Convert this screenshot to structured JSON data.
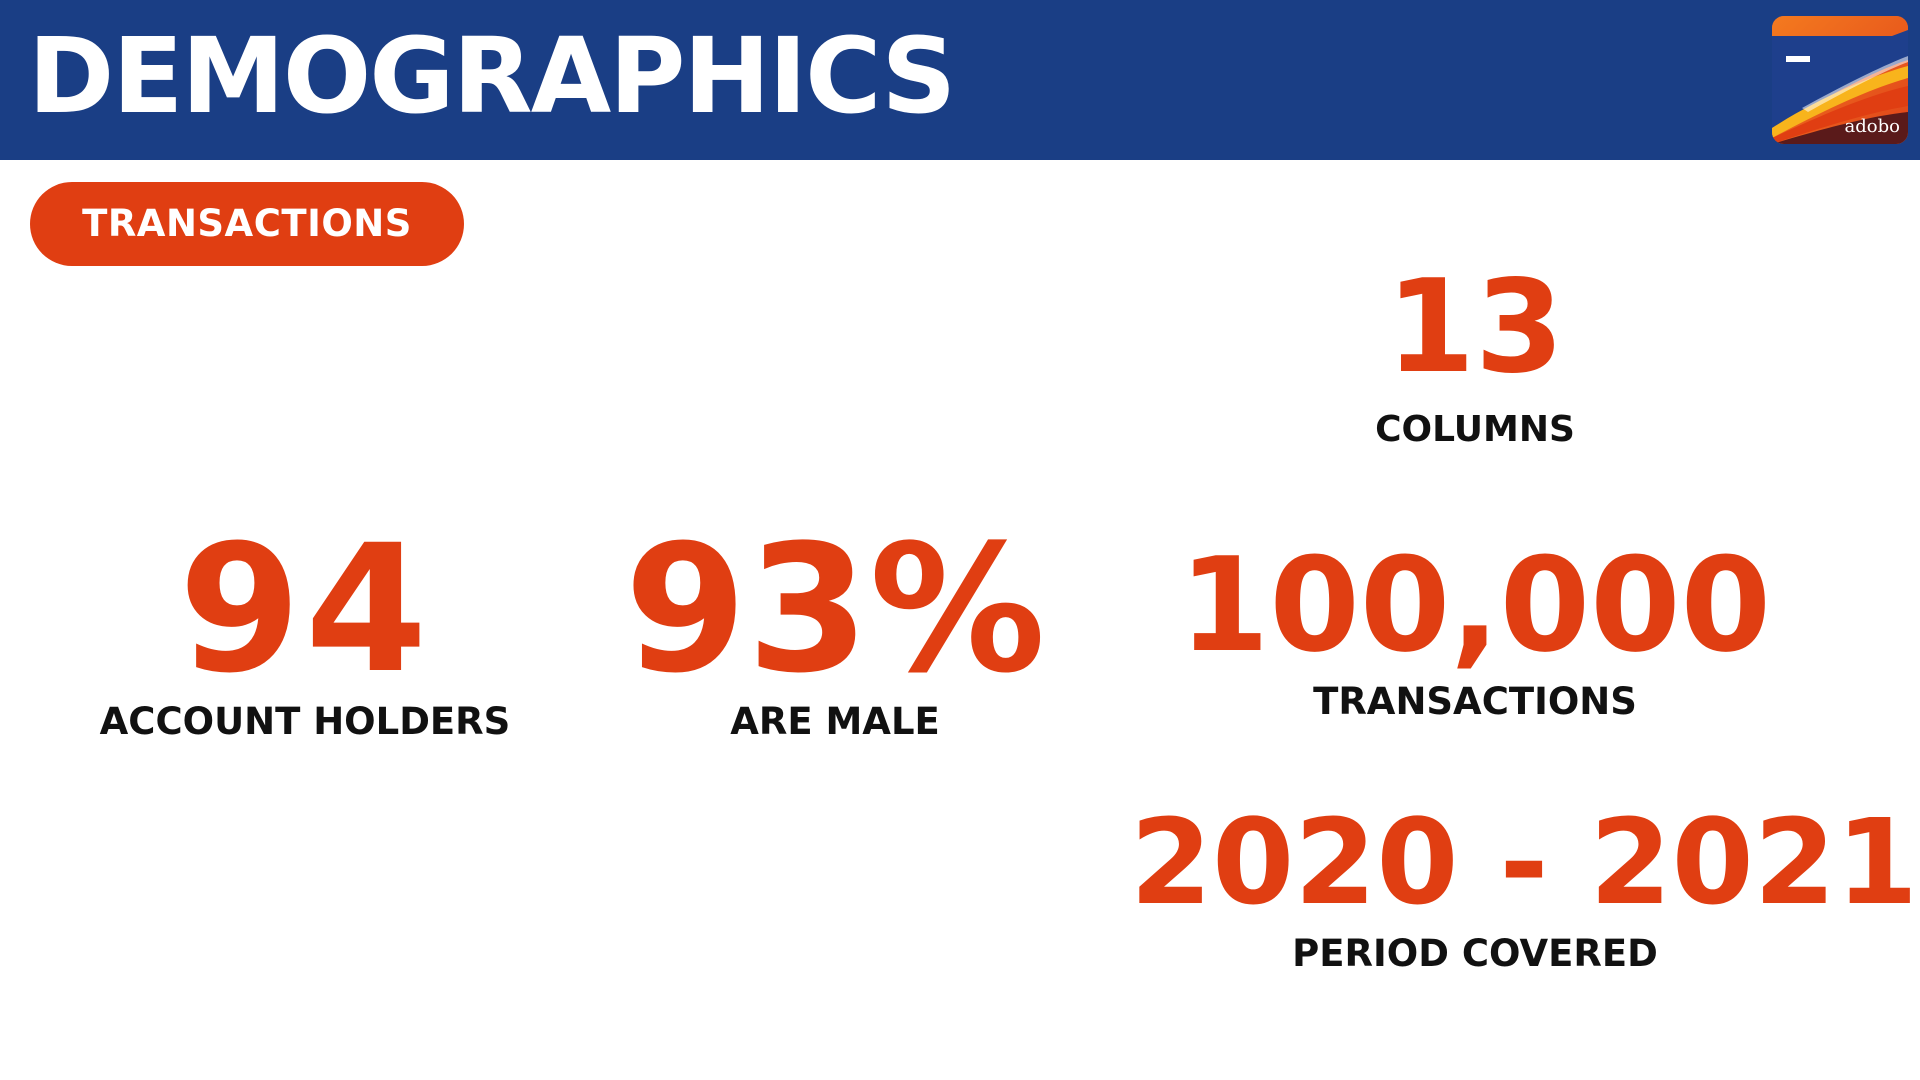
{
  "header": {
    "title": "DEMOGRAPHICS",
    "logo_text": "adobo"
  },
  "section_pill": {
    "label": "TRANSACTIONS"
  },
  "stats": {
    "columns": {
      "value": "13",
      "label": "COLUMNS"
    },
    "account_holders": {
      "value": "94",
      "label": "ACCOUNT HOLDERS"
    },
    "male_share": {
      "value": "93%",
      "label": "ARE MALE"
    },
    "transactions": {
      "value": "100,000",
      "label": "TRANSACTIONS"
    },
    "period": {
      "value": "2020 - 2021",
      "label": "PERIOD COVERED"
    }
  },
  "colors": {
    "header_bg": "#1a3e85",
    "accent": "#e03e12",
    "label_text": "#111111"
  }
}
